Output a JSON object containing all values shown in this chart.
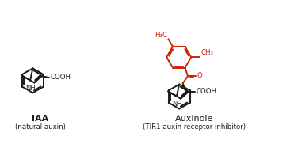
{
  "bg_color": "#ffffff",
  "black": "#1a1a1a",
  "red": "#cc2200",
  "lw": 1.4,
  "iaa_label": "IAA",
  "iaa_sublabel": "(natural auxin)",
  "aux_label": "Auxinole",
  "aux_sublabel": "(TIR1 auxin receptor inhibitor)",
  "fig_width": 3.71,
  "fig_height": 2.11
}
